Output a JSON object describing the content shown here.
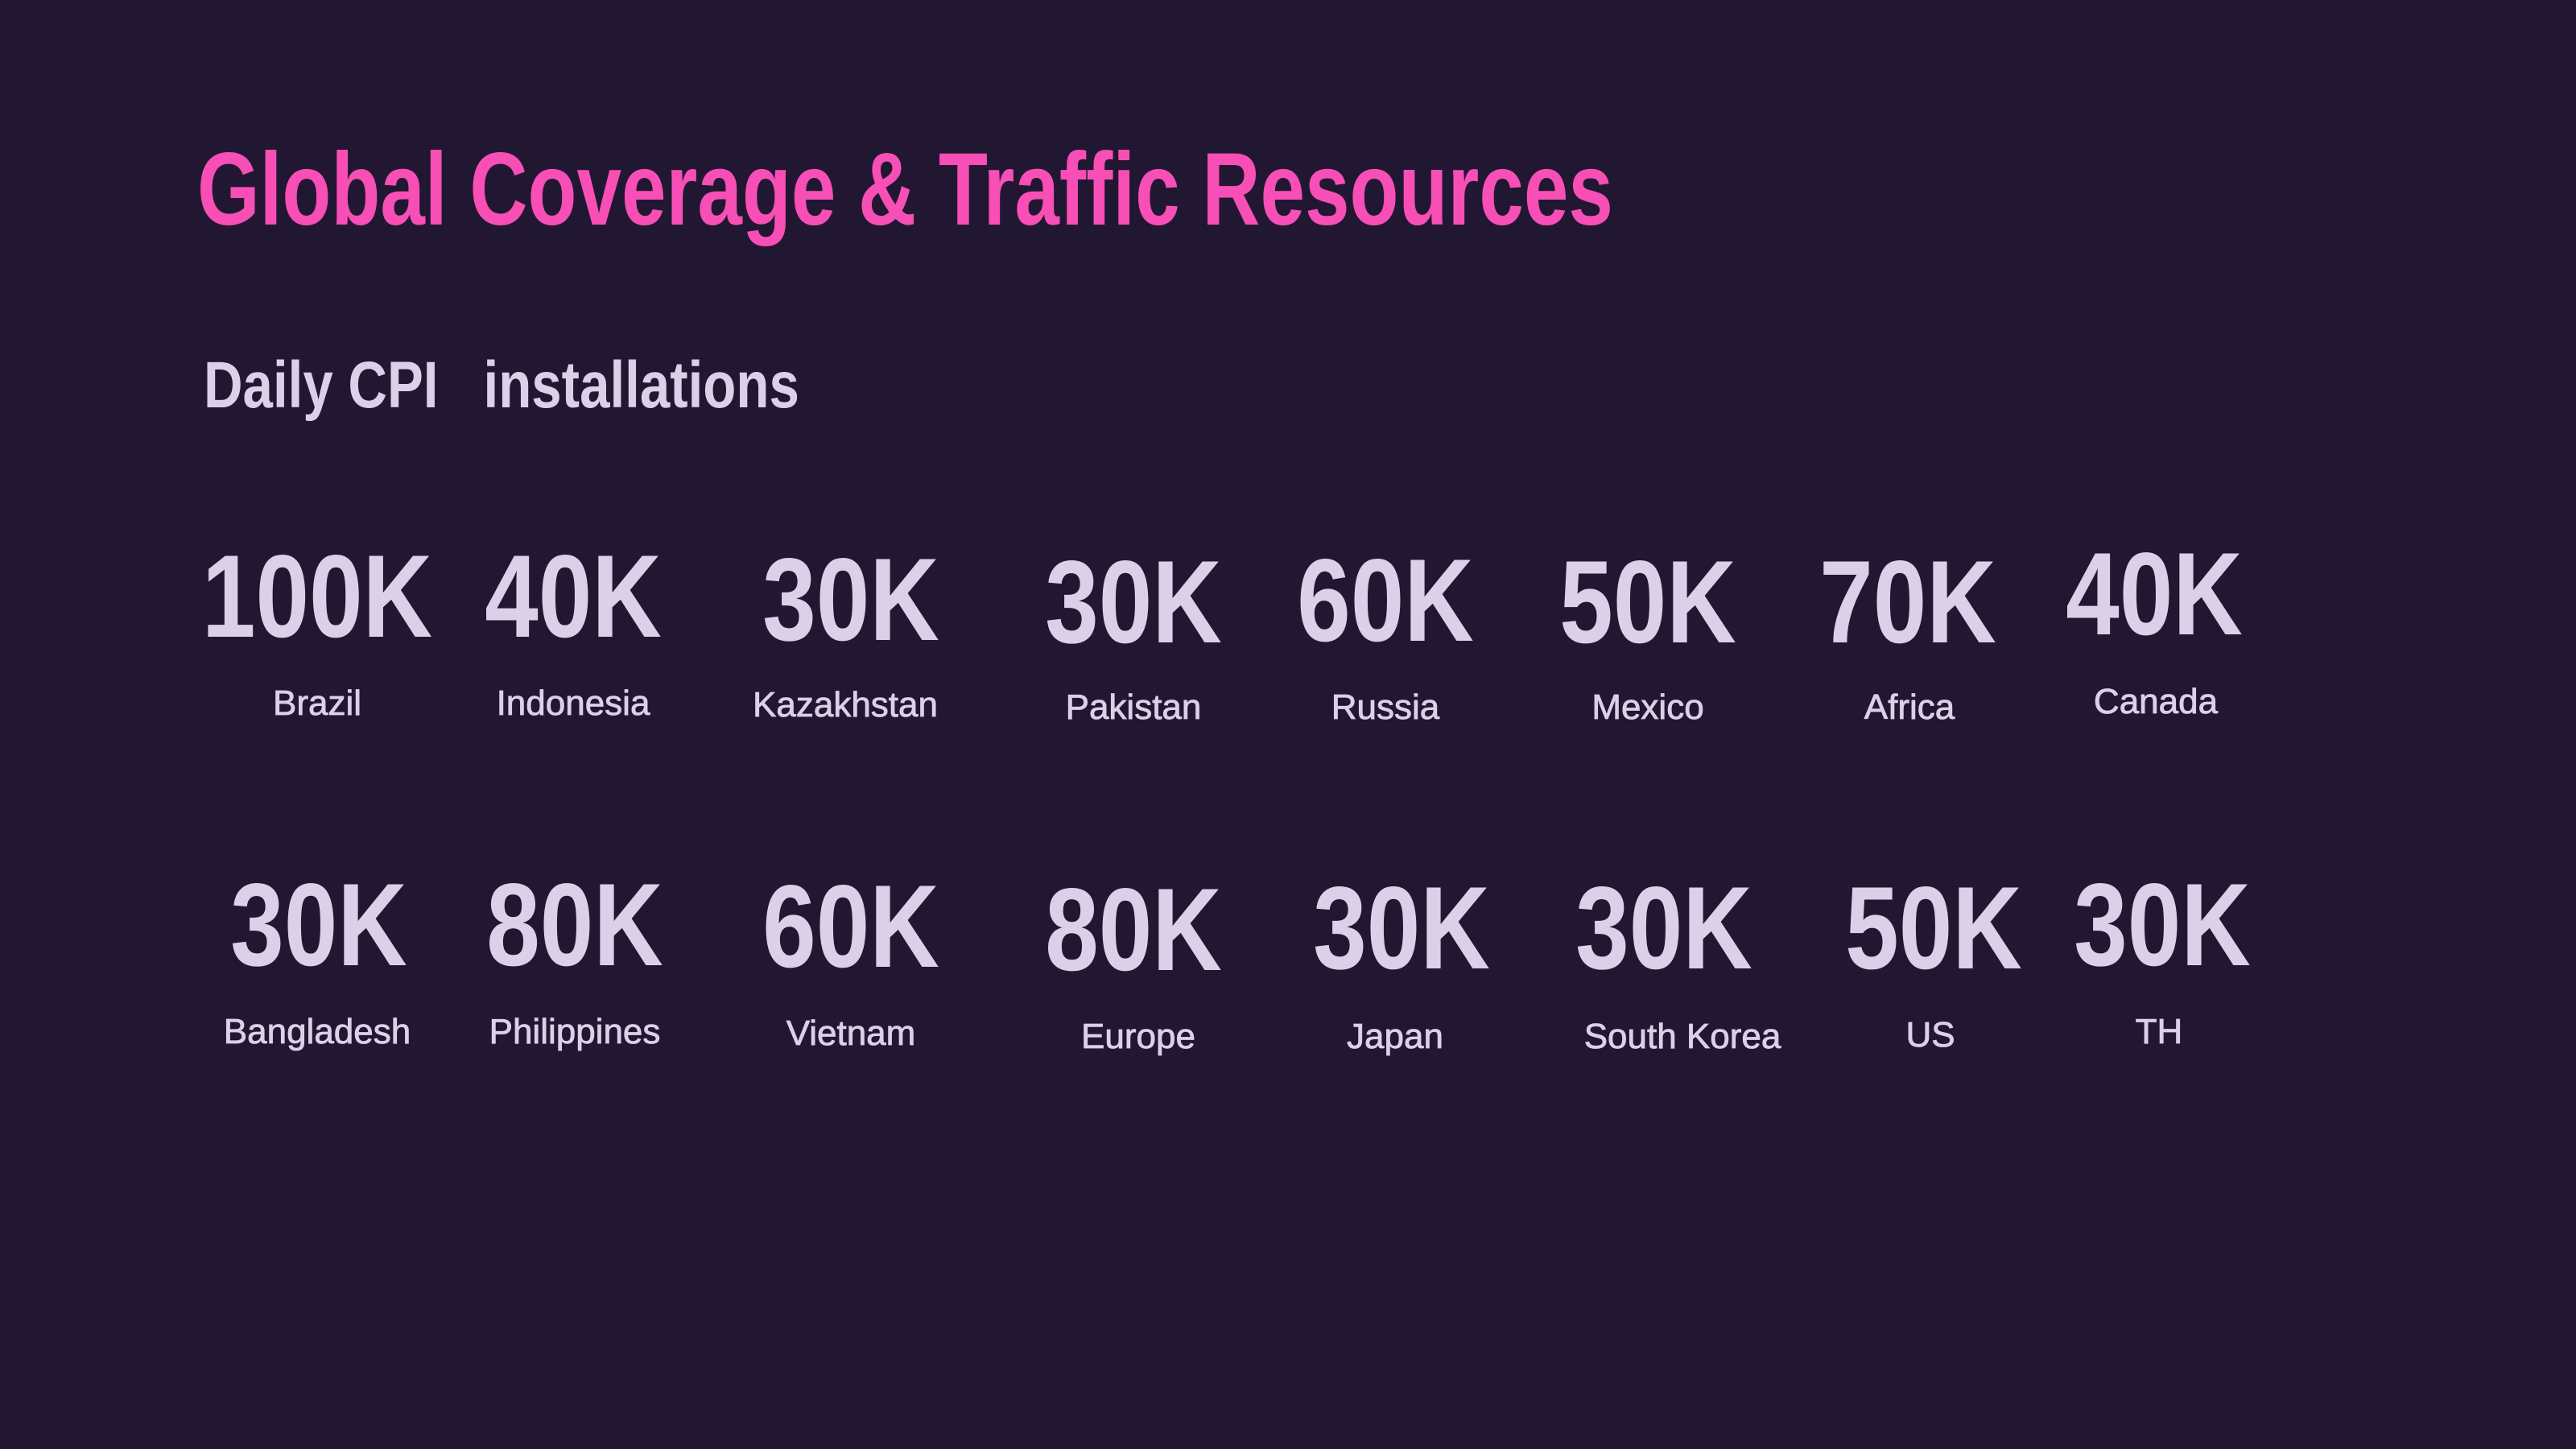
{
  "title": "Global Coverage & Traffic Resources",
  "subtitle": "Daily CPI   installations",
  "colors": {
    "background": "#221732",
    "title": "#f74fb5",
    "text": "#dcd0e8"
  },
  "regions": [
    {
      "value": "100K",
      "name": "Brazil"
    },
    {
      "value": "40K",
      "name": "Indonesia"
    },
    {
      "value": "30K",
      "name": "Kazakhstan"
    },
    {
      "value": "30K",
      "name": "Pakistan"
    },
    {
      "value": "60K",
      "name": "Russia"
    },
    {
      "value": "50K",
      "name": "Mexico"
    },
    {
      "value": "70K",
      "name": "Africa"
    },
    {
      "value": "40K",
      "name": "Canada"
    },
    {
      "value": "30K",
      "name": "Bangladesh"
    },
    {
      "value": "80K",
      "name": "Philippines"
    },
    {
      "value": "60K",
      "name": "Vietnam"
    },
    {
      "value": "80K",
      "name": "Europe"
    },
    {
      "value": "30K",
      "name": "Japan"
    },
    {
      "value": "30K",
      "name": "South Korea"
    },
    {
      "value": "50K",
      "name": "US"
    },
    {
      "value": "30K",
      "name": "TH"
    }
  ]
}
